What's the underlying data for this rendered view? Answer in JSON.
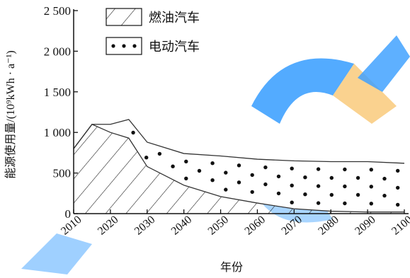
{
  "chart_data": {
    "type": "area",
    "xlabel": "年份",
    "ylabel": "能源使用量/(10⁹kWh · a⁻¹)",
    "x_ticks": [
      "2010",
      "2020",
      "2030",
      "2040",
      "2050",
      "2060",
      "2070",
      "2080",
      "2090",
      "2100"
    ],
    "y_ticks": [
      {
        "value": 0,
        "label": "0"
      },
      {
        "value": 500,
        "label": "500"
      },
      {
        "value": 1000,
        "label": "1 000"
      },
      {
        "value": 1500,
        "label": "1 500"
      },
      {
        "value": 2000,
        "label": "2 000"
      },
      {
        "value": 2500,
        "label": "2 500"
      }
    ],
    "xlim": [
      2010,
      2100
    ],
    "ylim": [
      0,
      2500
    ],
    "x": [
      2010,
      2015,
      2020,
      2025,
      2030,
      2040,
      2050,
      2060,
      2070,
      2080,
      2090,
      2100
    ],
    "series": [
      {
        "name": "燃油汽车",
        "pattern": "hatch",
        "values": [
          800,
          1100,
          1000,
          930,
          580,
          350,
          210,
          130,
          60,
          30,
          20,
          20
        ]
      },
      {
        "name": "电动汽车",
        "pattern": "dots",
        "values": [
          0,
          0,
          100,
          230,
          300,
          390,
          500,
          540,
          590,
          610,
          620,
          600
        ]
      }
    ],
    "legend_position": "top-center",
    "grid": false
  },
  "colors": {
    "axis": "#111111",
    "watermark_blue": "#1e90ff",
    "watermark_orange": "#f5a623"
  }
}
